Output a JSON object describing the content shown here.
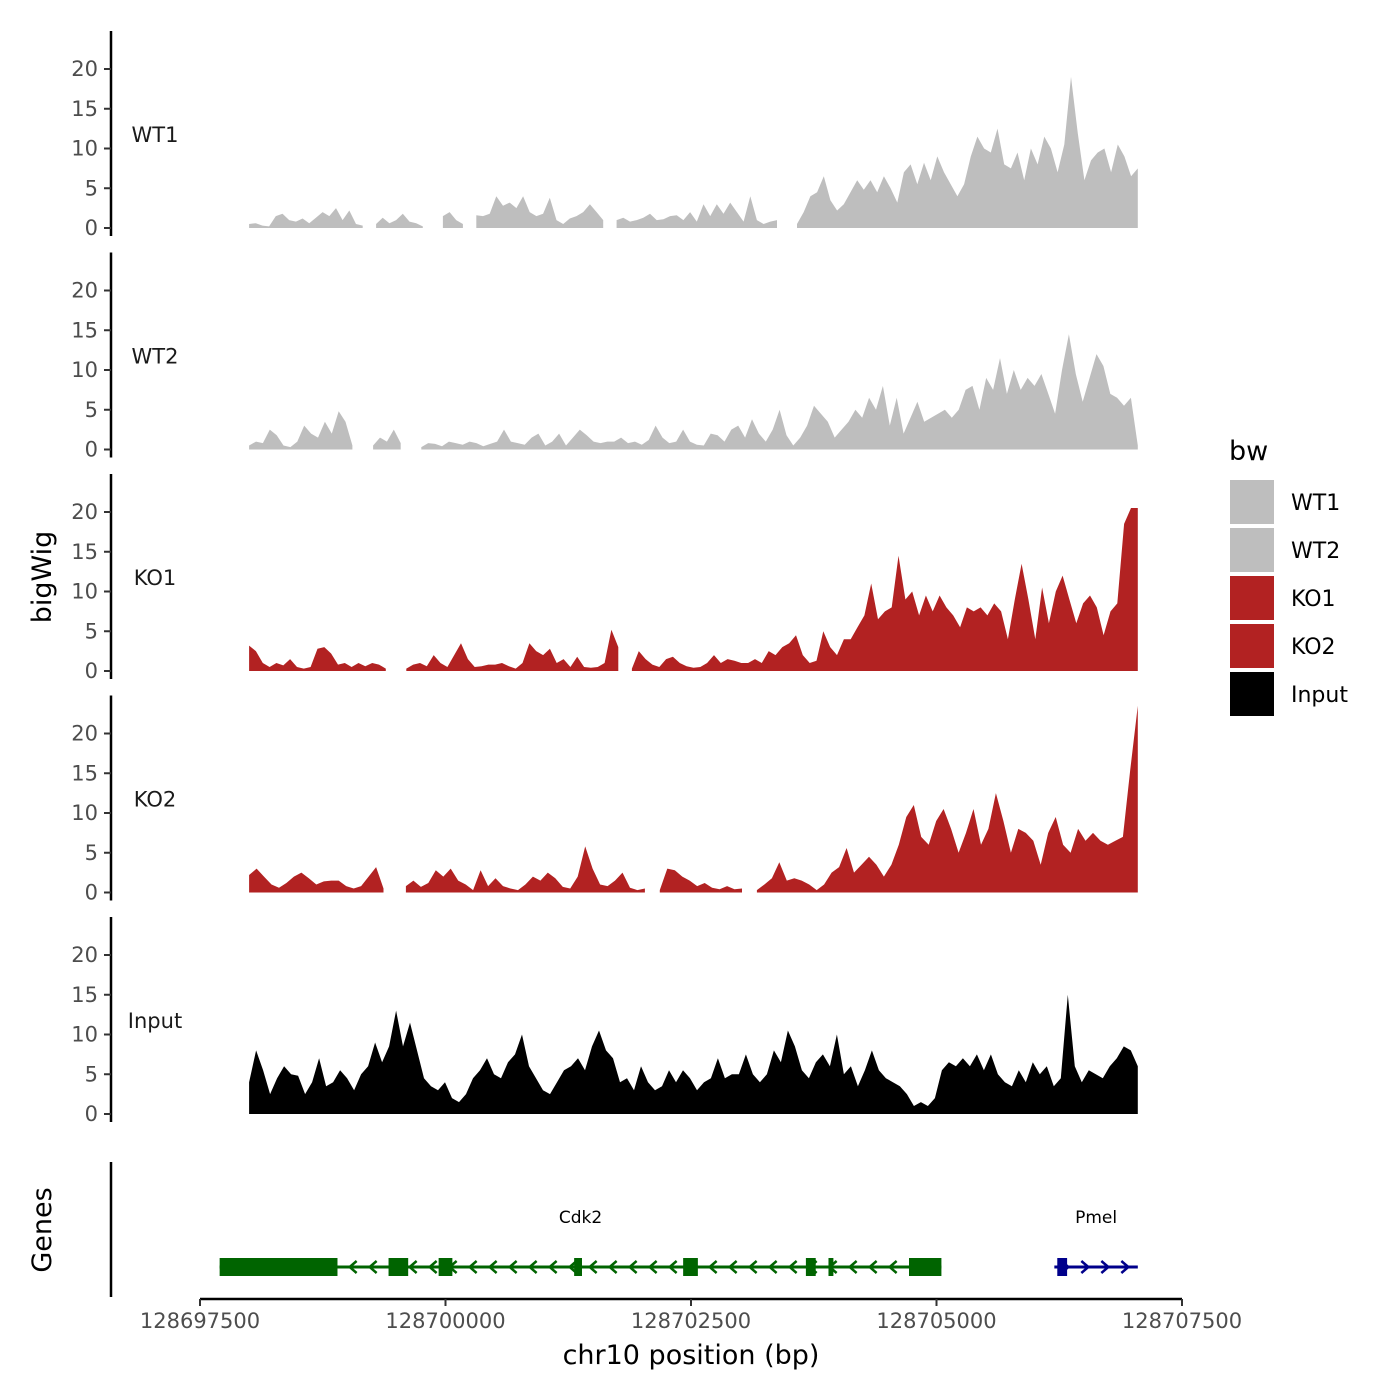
{
  "chart_data": {
    "type": "area",
    "ylabel": "bigWig",
    "xlabel": "chr10 position (bp)",
    "gene_track_label": "Genes",
    "ylim": [
      0,
      24
    ],
    "y_ticks": [
      "0",
      "5",
      "10",
      "15",
      "20"
    ],
    "xlim": [
      128697500,
      128707500
    ],
    "x_ticks": [
      "128697500",
      "128700000",
      "128702500",
      "128705000",
      "128707500"
    ],
    "legend": {
      "title": "bw",
      "position": "right",
      "entries": [
        {
          "label": "WT1",
          "color": "#bebebe"
        },
        {
          "label": "WT2",
          "color": "#bebebe"
        },
        {
          "label": "KO1",
          "color": "#b22222"
        },
        {
          "label": "KO2",
          "color": "#b22222"
        },
        {
          "label": "Input",
          "color": "#000000"
        }
      ]
    },
    "x_range_data": [
      128698000,
      128707050
    ],
    "series": [
      {
        "name": "WT1",
        "color": "#bebebe",
        "values": [
          0.5,
          0.6,
          0.3,
          0.2,
          1.5,
          1.8,
          1.0,
          0.8,
          1.2,
          0.6,
          1.3,
          2.0,
          1.5,
          2.5,
          1.0,
          2.2,
          0.5,
          0.3,
          null,
          0.5,
          1.3,
          0.6,
          1.0,
          1.8,
          0.8,
          0.6,
          0.2,
          null,
          null,
          1.5,
          2.0,
          1.0,
          0.5,
          null,
          1.6,
          1.5,
          1.8,
          4.0,
          2.8,
          3.2,
          2.5,
          4.0,
          2.0,
          1.5,
          1.8,
          3.8,
          1.0,
          0.5,
          1.2,
          1.5,
          2.0,
          3.0,
          2.0,
          1.0,
          null,
          1.0,
          1.3,
          0.8,
          1.0,
          1.3,
          1.8,
          1.0,
          1.1,
          1.5,
          1.6,
          1.0,
          2.0,
          0.8,
          3.0,
          1.5,
          3.0,
          1.8,
          3.2,
          2.0,
          0.8,
          4.0,
          1.0,
          0.5,
          0.8,
          1.0,
          null,
          null,
          0.5,
          2.0,
          4.0,
          4.5,
          6.5,
          3.5,
          2.2,
          3.0,
          4.5,
          6.0,
          4.8,
          6.0,
          4.5,
          6.5,
          5.0,
          3.2,
          7.0,
          8.0,
          5.5,
          8.2,
          6.0,
          9.0,
          7.0,
          5.5,
          4.0,
          5.5,
          9.0,
          11.5,
          10.0,
          9.5,
          12.5,
          8.0,
          7.5,
          9.5,
          6.0,
          10.0,
          8.0,
          11.5,
          10.0,
          7.0,
          10.5,
          19.0,
          12.0,
          6.0,
          8.5,
          9.5,
          10.0,
          7.0,
          10.5,
          9.0,
          6.5,
          7.5
        ]
      },
      {
        "name": "WT2",
        "color": "#bebebe",
        "values": [
          0.5,
          1.0,
          0.8,
          2.5,
          1.8,
          0.5,
          0.3,
          1.0,
          3.0,
          2.0,
          1.5,
          3.5,
          2.0,
          4.8,
          3.5,
          0.5,
          null,
          null,
          0.5,
          1.5,
          1.0,
          2.5,
          0.8,
          null,
          null,
          0.3,
          0.8,
          0.7,
          0.4,
          1.0,
          0.8,
          0.6,
          1.0,
          0.8,
          0.4,
          0.7,
          1.0,
          2.5,
          1.0,
          0.8,
          0.6,
          1.5,
          2.0,
          0.5,
          1.0,
          2.0,
          0.5,
          1.5,
          2.5,
          1.8,
          1.0,
          0.8,
          1.0,
          1.0,
          1.5,
          0.8,
          1.0,
          0.6,
          1.2,
          3.0,
          1.5,
          0.8,
          1.0,
          2.5,
          1.0,
          0.6,
          0.5,
          2.0,
          1.8,
          1.0,
          2.5,
          3.0,
          1.5,
          3.8,
          2.0,
          1.0,
          2.5,
          5.0,
          1.8,
          0.5,
          1.5,
          3.0,
          5.5,
          4.5,
          3.5,
          1.5,
          2.5,
          3.5,
          5.0,
          4.0,
          6.5,
          5.0,
          8.0,
          3.0,
          6.5,
          2.0,
          4.0,
          6.0,
          3.5,
          4.0,
          4.5,
          5.0,
          4.0,
          5.0,
          7.5,
          8.0,
          5.0,
          9.0,
          7.5,
          11.5,
          7.0,
          10.0,
          7.5,
          9.0,
          8.0,
          9.5,
          7.0,
          4.5,
          10.0,
          14.5,
          9.5,
          6.0,
          9.0,
          12.0,
          10.5,
          7.0,
          6.5,
          5.5,
          6.5,
          0.5
        ]
      },
      {
        "name": "KO1",
        "color": "#b22222",
        "values": [
          3.2,
          2.5,
          1.0,
          0.5,
          1.0,
          0.7,
          1.5,
          0.5,
          0.3,
          0.5,
          2.8,
          3.0,
          2.2,
          0.8,
          1.0,
          0.5,
          1.0,
          0.6,
          1.0,
          0.8,
          0.3,
          null,
          null,
          0.3,
          0.8,
          1.0,
          0.6,
          2.0,
          1.0,
          0.5,
          2.0,
          3.5,
          1.5,
          0.5,
          0.6,
          0.8,
          0.8,
          1.0,
          0.6,
          0.3,
          1.0,
          3.5,
          2.5,
          2.0,
          2.8,
          1.0,
          1.5,
          0.5,
          1.8,
          0.5,
          0.4,
          0.5,
          1.0,
          5.2,
          3.0,
          null,
          0.3,
          2.5,
          1.5,
          0.8,
          0.5,
          1.5,
          1.8,
          1.0,
          0.6,
          0.4,
          0.5,
          1.0,
          2.0,
          1.0,
          1.5,
          1.3,
          1.0,
          1.0,
          1.5,
          1.0,
          2.5,
          2.0,
          3.0,
          3.5,
          4.5,
          2.0,
          1.0,
          1.3,
          5.0,
          3.0,
          2.0,
          4.0,
          4.0,
          5.5,
          7.0,
          11.0,
          6.5,
          7.5,
          8.0,
          14.5,
          9.0,
          10.0,
          7.0,
          9.5,
          7.5,
          9.5,
          8.0,
          7.0,
          5.5,
          8.0,
          7.5,
          8.0,
          7.0,
          8.5,
          7.5,
          4.0,
          9.0,
          13.5,
          9.0,
          4.0,
          10.5,
          6.0,
          10.0,
          12.0,
          9.0,
          6.0,
          8.5,
          9.5,
          8.0,
          4.5,
          7.5,
          8.5,
          18.5,
          20.5,
          20.5
        ]
      },
      {
        "name": "KO2",
        "color": "#b22222",
        "values": [
          2.2,
          3.0,
          2.0,
          1.0,
          0.6,
          1.2,
          2.0,
          2.5,
          1.8,
          1.0,
          1.4,
          1.5,
          1.5,
          0.8,
          0.5,
          0.8,
          2.0,
          3.2,
          0.5,
          null,
          null,
          0.8,
          1.5,
          0.7,
          1.2,
          2.8,
          2.0,
          3.0,
          1.5,
          1.0,
          0.3,
          2.8,
          0.8,
          1.8,
          0.8,
          0.5,
          0.3,
          1.0,
          2.0,
          1.5,
          2.5,
          1.8,
          0.7,
          0.5,
          2.0,
          5.8,
          3.0,
          1.0,
          0.8,
          1.5,
          2.5,
          0.6,
          0.3,
          0.5,
          null,
          0.3,
          3.0,
          2.8,
          2.0,
          1.5,
          0.8,
          1.2,
          0.6,
          0.4,
          0.8,
          0.4,
          0.5,
          null,
          0.3,
          1.0,
          1.8,
          3.8,
          1.5,
          1.8,
          1.5,
          1.0,
          0.3,
          1.0,
          2.5,
          3.2,
          5.6,
          2.5,
          3.5,
          4.5,
          3.5,
          2.0,
          3.5,
          6.0,
          9.5,
          11.0,
          7.0,
          6.0,
          9.0,
          10.5,
          8.0,
          5.0,
          7.5,
          10.5,
          6.0,
          8.0,
          12.5,
          9.0,
          5.0,
          8.0,
          7.5,
          6.5,
          3.5,
          7.5,
          9.5,
          6.0,
          5.0,
          8.0,
          6.5,
          7.5,
          6.5,
          6.0,
          6.5,
          7.0,
          15.5,
          23.5
        ]
      },
      {
        "name": "Input",
        "color": "#000000",
        "values": [
          4.0,
          8.0,
          5.5,
          2.5,
          4.5,
          6.0,
          5.0,
          4.8,
          2.5,
          4.0,
          7.0,
          3.5,
          4.0,
          5.5,
          4.5,
          3.0,
          5.0,
          6.0,
          9.0,
          6.5,
          8.5,
          13.0,
          8.5,
          11.5,
          8.0,
          4.5,
          3.5,
          3.0,
          4.0,
          2.0,
          1.5,
          2.5,
          4.5,
          5.5,
          7.0,
          5.0,
          4.5,
          6.5,
          7.5,
          10.0,
          6.0,
          4.5,
          3.0,
          2.5,
          4.0,
          5.5,
          6.0,
          7.0,
          5.5,
          8.5,
          10.5,
          8.0,
          7.0,
          4.0,
          4.5,
          3.0,
          6.0,
          4.0,
          3.0,
          3.5,
          5.5,
          4.0,
          5.5,
          4.5,
          3.0,
          4.0,
          4.5,
          7.0,
          4.5,
          5.0,
          5.0,
          7.5,
          5.0,
          4.0,
          5.0,
          8.0,
          6.5,
          10.5,
          8.5,
          5.5,
          4.5,
          6.5,
          7.5,
          6.0,
          10.0,
          5.0,
          6.0,
          3.5,
          5.5,
          8.0,
          5.5,
          4.5,
          4.0,
          3.5,
          2.5,
          1.0,
          1.5,
          1.0,
          2.0,
          5.5,
          6.5,
          6.0,
          7.0,
          6.0,
          7.5,
          5.5,
          7.5,
          5.0,
          4.0,
          3.5,
          5.5,
          4.0,
          6.5,
          5.0,
          6.0,
          3.5,
          4.5,
          15.0,
          6.0,
          4.0,
          5.5,
          5.0,
          4.5,
          6.0,
          7.0,
          8.5,
          8.0,
          6.0
        ]
      }
    ],
    "genes": [
      {
        "name": "Cdk2",
        "strand": "-",
        "color": "#006400",
        "start": 128697700,
        "end": 128705050,
        "exons": [
          [
            128697700,
            128698900
          ],
          [
            128699420,
            128699620
          ],
          [
            128699930,
            128700070
          ],
          [
            128701310,
            128701390
          ],
          [
            128702420,
            128702570
          ],
          [
            128703670,
            128703770
          ],
          [
            128703900,
            128703950
          ],
          [
            128704720,
            128705050
          ]
        ]
      },
      {
        "name": "Pmel",
        "strand": "+",
        "color": "#00008b",
        "start": 128706200,
        "end": 128707050,
        "exons": [
          [
            128706230,
            128706330
          ]
        ]
      }
    ]
  }
}
